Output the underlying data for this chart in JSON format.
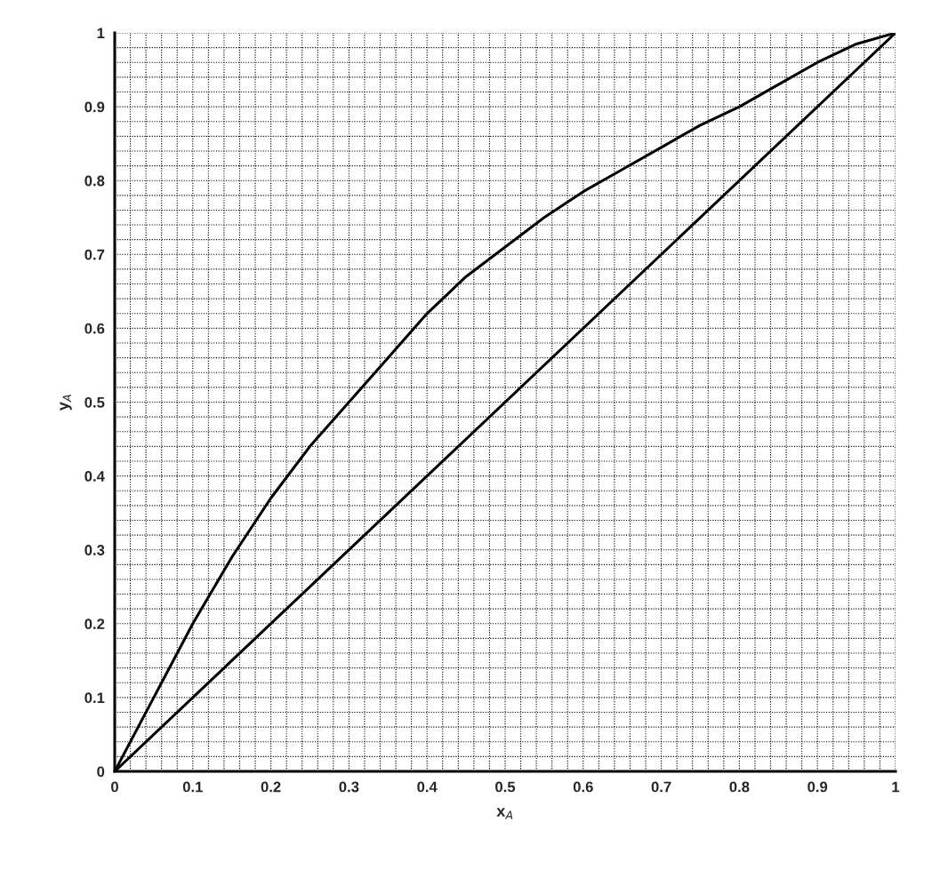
{
  "chart_data": {
    "type": "line",
    "xlabel": "x$_{A}$",
    "ylabel": "y$_{A}$",
    "series": [
      {
        "color": "#000000",
        "x": [
          0,
          0.05,
          0.1,
          0.15,
          0.2,
          0.25,
          0.3,
          0.35,
          0.4,
          0.45,
          0.5,
          0.55,
          0.6,
          0.65,
          0.7,
          0.75,
          0.8,
          0.85,
          0.9,
          0.95,
          1
        ],
        "values": [
          0,
          0.1,
          0.2,
          0.29,
          0.37,
          0.44,
          0.5,
          0.56,
          0.62,
          0.67,
          0.71,
          0.75,
          0.785,
          0.815,
          0.845,
          0.875,
          0.9,
          0.93,
          0.96,
          0.985,
          1
        ]
      },
      {
        "color": "#000000",
        "x": [
          0,
          1
        ],
        "values": [
          0,
          1
        ]
      }
    ],
    "xlim": [
      0,
      1
    ],
    "ylim": [
      0,
      1
    ],
    "xticks": [
      0,
      0.1,
      0.2,
      0.3,
      0.4,
      0.5,
      0.6,
      0.7,
      0.8,
      0.9,
      1
    ],
    "yticks": [
      0,
      0.1,
      0.2,
      0.3,
      0.4,
      0.5,
      0.6,
      0.7,
      0.8,
      0.9,
      1
    ],
    "grid": true,
    "line_style": "solid",
    "marker": "none"
  }
}
